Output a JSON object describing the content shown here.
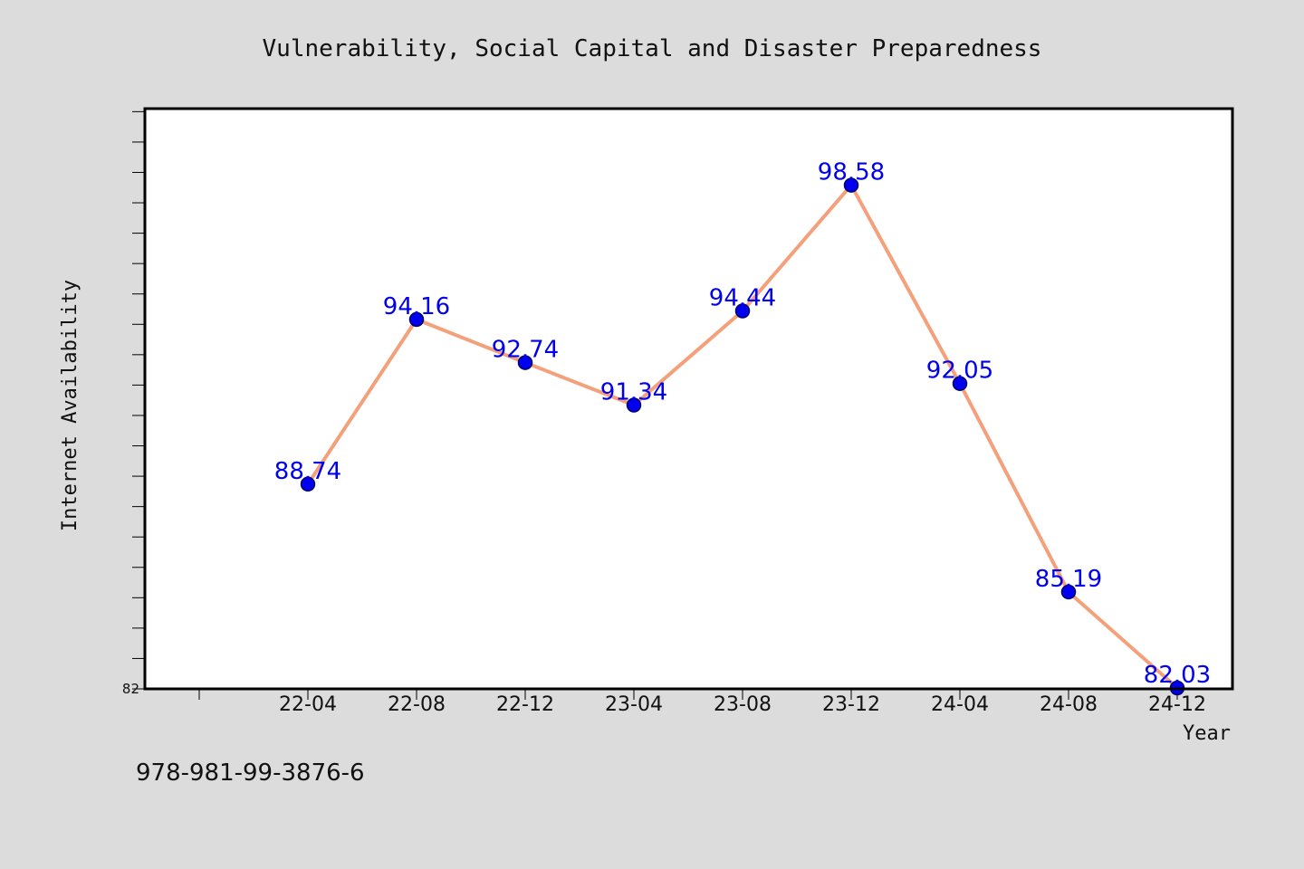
{
  "chart_data": {
    "type": "line",
    "title": "Vulnerability, Social Capital and Disaster Preparedness",
    "xlabel": "Year",
    "ylabel": "Internet Availability",
    "categories": [
      "22-04",
      "22-08",
      "22-12",
      "23-04",
      "23-08",
      "23-12",
      "24-04",
      "24-08",
      "24-12"
    ],
    "values": [
      88.74,
      94.16,
      92.74,
      91.34,
      94.44,
      98.58,
      92.05,
      85.19,
      82.03
    ],
    "value_labels": [
      "88.74",
      "94.16",
      "92.74",
      "91.34",
      "94.44",
      "98.58",
      "92.05",
      "85.19",
      "82.03"
    ],
    "ylim": [
      82,
      101.1
    ],
    "yticks_labeled": [
      "82"
    ],
    "grid": false,
    "legend": "none",
    "colors": {
      "line": "#f4a07a",
      "marker": "#0000ee",
      "marker_edge": "#000066",
      "data_label": "#0000ee",
      "background": "#dcdcdc",
      "plot_background": "#ffffff"
    }
  },
  "footer": {
    "isbn": "978-981-99-3876-6"
  }
}
